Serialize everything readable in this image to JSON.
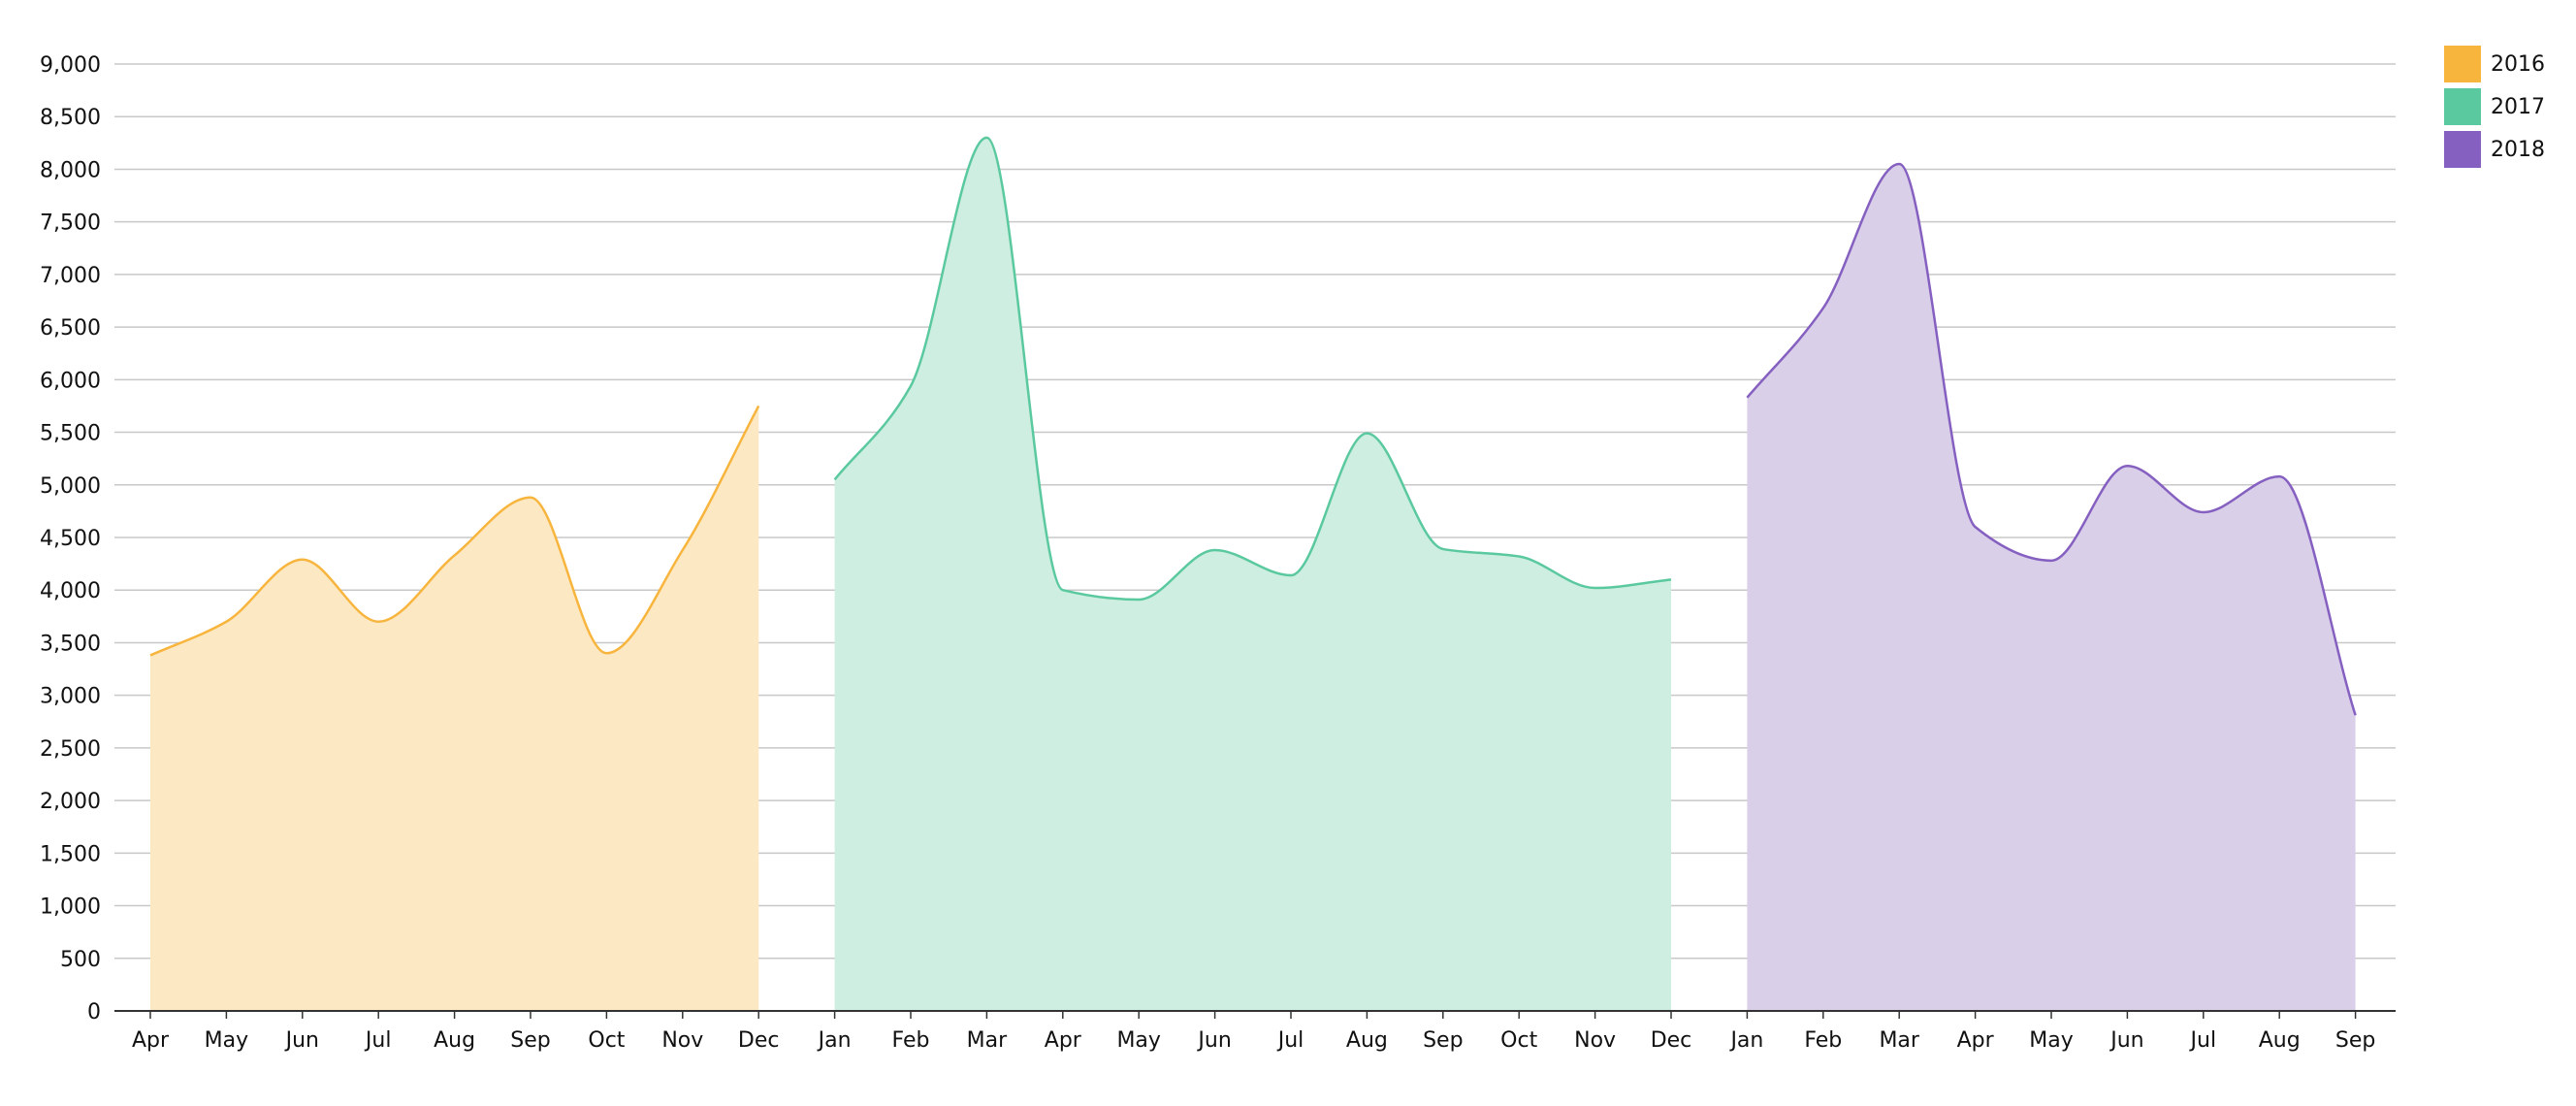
{
  "chart_data": {
    "type": "area",
    "ylim": [
      0,
      9000
    ],
    "y_ticks": [
      0,
      500,
      1000,
      1500,
      2000,
      2500,
      3000,
      3500,
      4000,
      4500,
      5000,
      5500,
      6000,
      6500,
      7000,
      7500,
      8000,
      8500,
      9000
    ],
    "y_tick_labels": [
      "0",
      "500",
      "1,000",
      "1,500",
      "2,000",
      "2,500",
      "3,000",
      "3,500",
      "4,000",
      "4,500",
      "5,000",
      "5,500",
      "6,000",
      "6,500",
      "7,000",
      "7,500",
      "8,000",
      "8,500",
      "9,000"
    ],
    "grid": true,
    "legend_position": "top-right",
    "series": [
      {
        "name": "2016",
        "color": "#F8B53E",
        "fill": "#FDE8C4",
        "categories": [
          "Apr",
          "May",
          "Jun",
          "Jul",
          "Aug",
          "Sep",
          "Oct",
          "Nov",
          "Dec"
        ],
        "values": [
          3380,
          3700,
          4290,
          3700,
          4330,
          4880,
          3400,
          4380,
          5750
        ]
      },
      {
        "name": "2017",
        "color": "#5BC99F",
        "fill": "#CDEEE0",
        "categories": [
          "Jan",
          "Feb",
          "Mar",
          "Apr",
          "May",
          "Jun",
          "Jul",
          "Aug",
          "Sep",
          "Oct",
          "Nov",
          "Dec"
        ],
        "values": [
          5050,
          5940,
          8300,
          4000,
          3910,
          4380,
          4140,
          5490,
          4390,
          4320,
          4020,
          4100
        ]
      },
      {
        "name": "2018",
        "color": "#8560C0",
        "fill": "#D9CFE9",
        "categories": [
          "Jan",
          "Feb",
          "Mar",
          "Apr",
          "May",
          "Jun",
          "Jul",
          "Aug",
          "Sep"
        ],
        "values": [
          5830,
          6680,
          8050,
          4600,
          4280,
          5180,
          4740,
          5080,
          2810
        ]
      }
    ]
  }
}
